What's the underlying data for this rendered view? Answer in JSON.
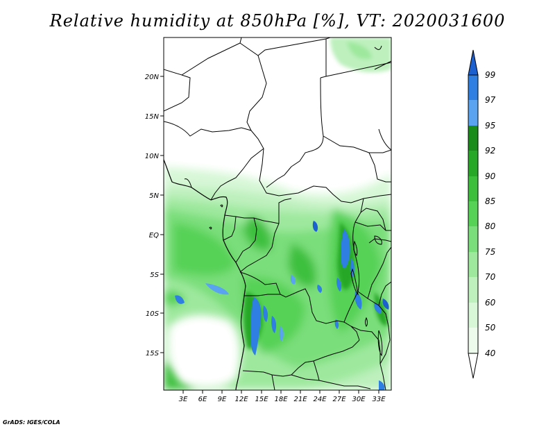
{
  "title": "Relative humidity at 850hPa [%], VT: 2020031600",
  "credit": "GrADS: IGES/COLA",
  "map": {
    "lat_labels": [
      "20N",
      "15N",
      "10N",
      "5N",
      "EQ",
      "5S",
      "10S",
      "15S"
    ],
    "lon_labels": [
      "3E",
      "6E",
      "9E",
      "12E",
      "15E",
      "18E",
      "21E",
      "24E",
      "27E",
      "30E",
      "33E"
    ]
  },
  "colorbar": {
    "labels": [
      "99",
      "97",
      "95",
      "92",
      "90",
      "85",
      "80",
      "75",
      "70",
      "60",
      "50",
      "40"
    ],
    "colors": [
      "#1c5fcf",
      "#2f7fe3",
      "#5aa3f0",
      "#1a8c1a",
      "#27a827",
      "#3cc03c",
      "#56d256",
      "#7ade7a",
      "#9ee89e",
      "#bdf0bd",
      "#d7f7d7",
      "#ecfbec",
      "#ffffff"
    ]
  }
}
